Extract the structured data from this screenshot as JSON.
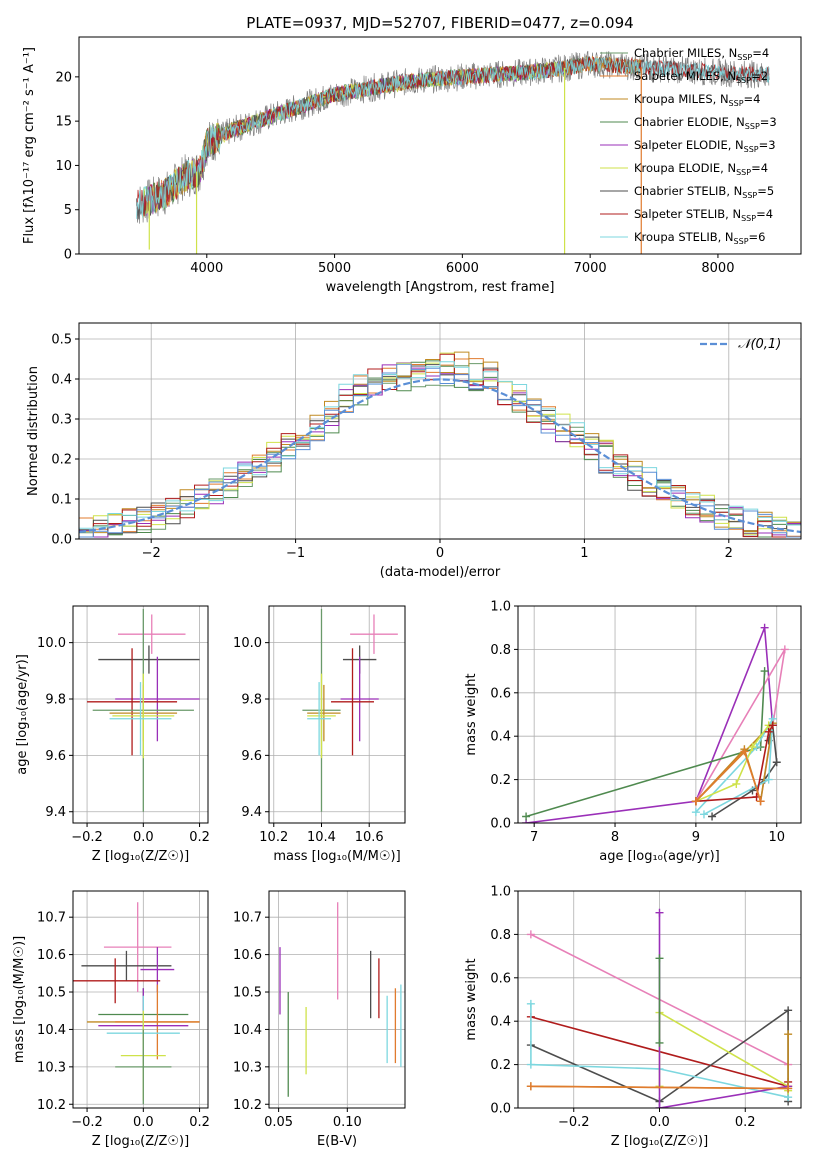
{
  "figure_title": "PLATE=0937, MJD=52707, FIBERID=0477, z=0.094",
  "colors": {
    "Chabrier MILES": "#6a9a6a",
    "Salpeter MILES": "#e07b2e",
    "Kroupa MILES": "#c08a22",
    "Chabrier ELODIE": "#4f8a4f",
    "Salpeter ELODIE": "#9a2fb8",
    "Kroupa ELODIE": "#cfe24a",
    "Chabrier STELIB": "#4d4d4d",
    "Salpeter STELIB": "#b01c1c",
    "Kroupa STELIB": "#7dd7df",
    "normal": "#5b8fd6",
    "pink": "#e780b8",
    "gray_spectrum": "#808080"
  },
  "chart_data": [
    {
      "id": "spectrum",
      "type": "line",
      "title": "PLATE=0937, MJD=52707, FIBERID=0477, z=0.094",
      "xlabel": "wavelength [Angstrom, rest frame]",
      "ylabel": "Flux [fλ10⁻¹⁷ erg cm⁻² s⁻¹ A⁻¹]",
      "xlim": [
        3000,
        8650
      ],
      "ylim": [
        0,
        24.5
      ],
      "xticks": [
        4000,
        5000,
        6000,
        7000,
        8000
      ],
      "yticks": [
        0,
        5,
        10,
        15,
        20
      ],
      "grid": false,
      "legend_position": "right",
      "legend": [
        "Chabrier MILES, N_SSP=4",
        "Salpeter MILES, N_SSP=2",
        "Kroupa MILES, N_SSP=4",
        "Chabrier ELODIE, N_SSP=3",
        "Salpeter ELODIE, N_SSP=3",
        "Kroupa ELODIE, N_SSP=4",
        "Chabrier STELIB, N_SSP=5",
        "Salpeter STELIB, N_SSP=4",
        "Kroupa STELIB, N_SSP=6"
      ],
      "continuum": {
        "wavelength": [
          3450,
          3550,
          3700,
          3800,
          3950,
          4000,
          4200,
          4500,
          4800,
          5000,
          5300,
          5600,
          6000,
          6500,
          6800,
          7000,
          7200,
          7500,
          8000,
          8400
        ],
        "flux": [
          5.5,
          6.0,
          7.0,
          8.5,
          9.5,
          12.5,
          14.0,
          15.5,
          17.0,
          18.0,
          18.8,
          19.5,
          20.0,
          20.5,
          21.0,
          21.5,
          21.3,
          21.0,
          20.5,
          20.2
        ]
      },
      "drops": [
        {
          "wavelength": 3550,
          "min_flux": 0.5
        },
        {
          "wavelength": 3920,
          "min_flux": 0
        },
        {
          "wavelength": 6800,
          "min_flux": 0
        },
        {
          "wavelength": 7400,
          "min_flux": 0
        }
      ]
    },
    {
      "id": "residuals",
      "type": "line",
      "xlabel": "(data-model)/error",
      "ylabel": "Normed distribution",
      "xlim": [
        -2.5,
        2.5
      ],
      "ylim": [
        0,
        0.54
      ],
      "xticks": [
        -2,
        -1,
        0,
        1,
        2
      ],
      "yticks": [
        0.0,
        0.1,
        0.2,
        0.3,
        0.4,
        0.5
      ],
      "grid": true,
      "legend": [
        "𝒩(0,1)"
      ],
      "legend_position": "top-right",
      "bin_width": 0.1,
      "bin_start": -2.5
    },
    {
      "id": "Z-age",
      "type": "scatter",
      "xlabel": "Z [log₁₀(Z/Z☉)]",
      "ylabel": "age  [log₁₀(age/yr)]",
      "xlim": [
        -0.25,
        0.23
      ],
      "ylim": [
        9.36,
        10.13
      ],
      "xticks": [
        -0.2,
        0.0,
        0.2
      ],
      "yticks": [
        9.4,
        9.6,
        9.8,
        10.0
      ],
      "grid": true,
      "points": [
        {
          "x": 0.03,
          "xerr": 0.12,
          "y": 10.03,
          "yerr": 0.07,
          "color": "pink"
        },
        {
          "x": 0.02,
          "xerr": 0.18,
          "y": 9.94,
          "yerr": 0.05,
          "color": "Chabrier STELIB"
        },
        {
          "x": 0.05,
          "xerr": 0.15,
          "y": 9.8,
          "yerr": 0.15,
          "color": "Salpeter ELODIE"
        },
        {
          "x": -0.04,
          "xerr": 0.16,
          "y": 9.79,
          "yerr": 0.19,
          "color": "Salpeter STELIB"
        },
        {
          "x": 0.0,
          "xerr": 0.18,
          "y": 9.76,
          "yerr": 0.36,
          "color": "Chabrier MILES"
        },
        {
          "x": 0.0,
          "xerr": 0.12,
          "y": 9.75,
          "yerr": 0.1,
          "color": "Kroupa MILES"
        },
        {
          "x": 0.0,
          "xerr": 0.11,
          "y": 9.74,
          "yerr": 0.15,
          "color": "Kroupa ELODIE"
        },
        {
          "x": -0.01,
          "xerr": 0.11,
          "y": 9.73,
          "yerr": 0.13,
          "color": "Kroupa STELIB"
        }
      ]
    },
    {
      "id": "mass-age",
      "type": "scatter",
      "xlabel": "mass [log₁₀(M/M☉)]",
      "ylabel": "",
      "xlim": [
        10.18,
        10.75
      ],
      "ylim": [
        9.36,
        10.13
      ],
      "xticks": [
        10.2,
        10.4,
        10.6
      ],
      "yticks": [
        9.4,
        9.6,
        9.8,
        10.0
      ],
      "grid": true,
      "points": [
        {
          "x": 10.62,
          "xerr": 0.1,
          "y": 10.03,
          "yerr": 0.07,
          "color": "pink"
        },
        {
          "x": 10.56,
          "xerr": 0.07,
          "y": 9.94,
          "yerr": 0.05,
          "color": "Chabrier STELIB"
        },
        {
          "x": 10.56,
          "xerr": 0.08,
          "y": 9.8,
          "yerr": 0.15,
          "color": "Salpeter ELODIE"
        },
        {
          "x": 10.53,
          "xerr": 0.09,
          "y": 9.79,
          "yerr": 0.19,
          "color": "Salpeter STELIB"
        },
        {
          "x": 10.4,
          "xerr": 0.08,
          "y": 9.76,
          "yerr": 0.36,
          "color": "Chabrier MILES"
        },
        {
          "x": 10.41,
          "xerr": 0.07,
          "y": 9.75,
          "yerr": 0.1,
          "color": "Kroupa MILES"
        },
        {
          "x": 10.4,
          "xerr": 0.06,
          "y": 9.74,
          "yerr": 0.15,
          "color": "Kroupa ELODIE"
        },
        {
          "x": 10.39,
          "xerr": 0.05,
          "y": 9.73,
          "yerr": 0.13,
          "color": "Kroupa STELIB"
        }
      ]
    },
    {
      "id": "age-weight",
      "type": "line",
      "xlabel": "age  [log₁₀(age/yr)]",
      "ylabel": "mass weight",
      "xlim": [
        6.8,
        10.3
      ],
      "ylim": [
        0,
        1.0
      ],
      "xticks": [
        7,
        8,
        9,
        10
      ],
      "yticks": [
        0.0,
        0.2,
        0.4,
        0.6,
        0.8,
        1.0
      ],
      "grid": true,
      "series": [
        {
          "color": "Salpeter ELODIE",
          "x": [
            6.9,
            9.0,
            9.85,
            9.95
          ],
          "y": [
            0.0,
            0.1,
            0.9,
            0.45
          ]
        },
        {
          "color": "pink",
          "x": [
            9.0,
            10.1,
            9.8
          ],
          "y": [
            0.1,
            0.8,
            0.1
          ]
        },
        {
          "color": "Chabrier ELODIE",
          "x": [
            6.9,
            9.8,
            9.85
          ],
          "y": [
            0.03,
            0.35,
            0.7
          ]
        },
        {
          "color": "Chabrier STELIB",
          "x": [
            9.2,
            9.7,
            9.85,
            10.0,
            9.95,
            9.9
          ],
          "y": [
            0.03,
            0.15,
            0.2,
            0.28,
            0.45,
            0.38
          ]
        },
        {
          "color": "Kroupa MILES",
          "x": [
            9.0,
            9.6,
            9.8,
            9.95,
            9.0
          ],
          "y": [
            0.1,
            0.34,
            0.1,
            0.46,
            0.1
          ]
        },
        {
          "color": "Kroupa STELIB",
          "x": [
            9.0,
            9.75,
            9.95,
            9.9,
            9.1
          ],
          "y": [
            0.05,
            0.35,
            0.48,
            0.2,
            0.04
          ]
        },
        {
          "color": "Kroupa ELODIE",
          "x": [
            9.0,
            9.5,
            9.7,
            9.9
          ],
          "y": [
            0.1,
            0.18,
            0.35,
            0.45
          ]
        },
        {
          "color": "Salpeter STELIB",
          "x": [
            9.0,
            9.75,
            9.9,
            9.95
          ],
          "y": [
            0.1,
            0.12,
            0.42,
            0.45
          ]
        },
        {
          "color": "Salpeter MILES",
          "x": [
            9.0,
            9.6,
            9.8
          ],
          "y": [
            0.1,
            0.33,
            0.1
          ]
        }
      ]
    },
    {
      "id": "Z-mass",
      "type": "scatter",
      "xlabel": "Z [log₁₀(Z/Z☉)]",
      "ylabel": "mass [log₁₀(M/M☉)]",
      "xlim": [
        -0.25,
        0.23
      ],
      "ylim": [
        10.19,
        10.77
      ],
      "xticks": [
        -0.2,
        0.0,
        0.2
      ],
      "yticks": [
        10.2,
        10.3,
        10.4,
        10.5,
        10.6,
        10.7
      ],
      "grid": true,
      "points": [
        {
          "x": -0.02,
          "xerr": 0.12,
          "y": 10.62,
          "yerr": 0.12,
          "color": "pink"
        },
        {
          "x": -0.06,
          "xerr": 0.16,
          "y": 10.57,
          "yerr": 0.04,
          "color": "Chabrier STELIB"
        },
        {
          "x": 0.05,
          "xerr": 0.06,
          "y": 10.56,
          "yerr": 0.06,
          "color": "Salpeter ELODIE"
        },
        {
          "x": -0.1,
          "xerr": 0.16,
          "y": 10.53,
          "yerr": 0.06,
          "color": "Salpeter STELIB"
        },
        {
          "x": 0.0,
          "xerr": 0.16,
          "y": 10.44,
          "yerr": 0.07,
          "color": "Chabrier ELODIE"
        },
        {
          "x": 0.0,
          "xerr": 0.2,
          "y": 10.42,
          "yerr": 0.06,
          "color": "Kroupa MILES"
        },
        {
          "x": 0.05,
          "xerr": 0.15,
          "y": 10.42,
          "yerr": 0.1,
          "color": "Salpeter MILES"
        },
        {
          "x": 0.0,
          "xerr": 0.16,
          "y": 10.41,
          "yerr": 0.1,
          "color": "Salpeter ELODIE"
        },
        {
          "x": 0.0,
          "xerr": 0.13,
          "y": 10.39,
          "yerr": 0.1,
          "color": "Kroupa STELIB"
        },
        {
          "x": 0.0,
          "xerr": 0.08,
          "y": 10.33,
          "yerr": 0.12,
          "color": "Kroupa ELODIE"
        },
        {
          "x": 0.0,
          "xerr": 0.1,
          "y": 10.3,
          "yerr": 0.1,
          "color": "Chabrier MILES"
        }
      ]
    },
    {
      "id": "EBV-mass",
      "type": "scatter",
      "xlabel": "E(B-V)",
      "ylabel": "",
      "xlim": [
        0.043,
        0.142
      ],
      "ylim": [
        10.19,
        10.77
      ],
      "xticks": [
        0.05,
        0.1
      ],
      "yticks": [
        10.2,
        10.3,
        10.4,
        10.5,
        10.6,
        10.7
      ],
      "grid": true,
      "points": [
        {
          "x": 0.051,
          "y": 10.53,
          "yerr": 0.09,
          "color": "Salpeter ELODIE"
        },
        {
          "x": 0.057,
          "y": 10.36,
          "yerr": 0.14,
          "color": "Chabrier ELODIE"
        },
        {
          "x": 0.07,
          "y": 10.37,
          "yerr": 0.09,
          "color": "Kroupa ELODIE"
        },
        {
          "x": 0.093,
          "y": 10.61,
          "yerr": 0.13,
          "color": "pink"
        },
        {
          "x": 0.117,
          "y": 10.52,
          "yerr": 0.09,
          "color": "Chabrier STELIB"
        },
        {
          "x": 0.123,
          "y": 10.51,
          "yerr": 0.08,
          "color": "Salpeter STELIB"
        },
        {
          "x": 0.129,
          "y": 10.4,
          "yerr": 0.09,
          "color": "Kroupa STELIB"
        },
        {
          "x": 0.135,
          "y": 10.41,
          "yerr": 0.1,
          "color": "Salpeter MILES"
        },
        {
          "x": 0.139,
          "y": 10.41,
          "yerr": 0.11,
          "color": "Kroupa STELIB"
        }
      ]
    },
    {
      "id": "Z-weight",
      "type": "line",
      "xlabel": "Z [log₁₀(Z/Z☉)]",
      "ylabel": "mass weight",
      "xlim": [
        -0.33,
        0.33
      ],
      "ylim": [
        0,
        1.0
      ],
      "xticks": [
        -0.2,
        0.0,
        0.2
      ],
      "yticks": [
        0.0,
        0.2,
        0.4,
        0.6,
        0.8,
        1.0
      ],
      "grid": true,
      "series": [
        {
          "color": "pink",
          "x": [
            -0.3,
            0.3
          ],
          "y": [
            0.8,
            0.2
          ]
        },
        {
          "color": "Salpeter STELIB",
          "x": [
            -0.3,
            0.3,
            0.3
          ],
          "y": [
            0.42,
            0.1,
            0.12
          ]
        },
        {
          "color": "Chabrier STELIB",
          "x": [
            -0.3,
            0.0,
            0.3,
            0.3
          ],
          "y": [
            0.29,
            0.03,
            0.45,
            0.03
          ]
        },
        {
          "color": "Kroupa STELIB",
          "x": [
            -0.3,
            -0.3,
            0.0,
            0.3
          ],
          "y": [
            0.48,
            0.2,
            0.18,
            0.05
          ]
        },
        {
          "color": "Kroupa ELODIE",
          "x": [
            0.0,
            0.0,
            0.3,
            0.3
          ],
          "y": [
            0.1,
            0.44,
            0.1,
            0.08
          ]
        },
        {
          "color": "Salpeter ELODIE",
          "x": [
            0.0,
            0.0,
            0.3
          ],
          "y": [
            0.9,
            0.0,
            0.1
          ]
        },
        {
          "color": "Chabrier ELODIE",
          "x": [
            0.0,
            0.0
          ],
          "y": [
            0.69,
            0.3
          ]
        },
        {
          "color": "Kroupa MILES",
          "x": [
            -0.3,
            0.3,
            0.3
          ],
          "y": [
            0.1,
            0.09,
            0.34
          ]
        },
        {
          "color": "Salpeter MILES",
          "x": [
            -0.3,
            0.3
          ],
          "y": [
            0.1,
            0.09
          ]
        }
      ]
    }
  ]
}
